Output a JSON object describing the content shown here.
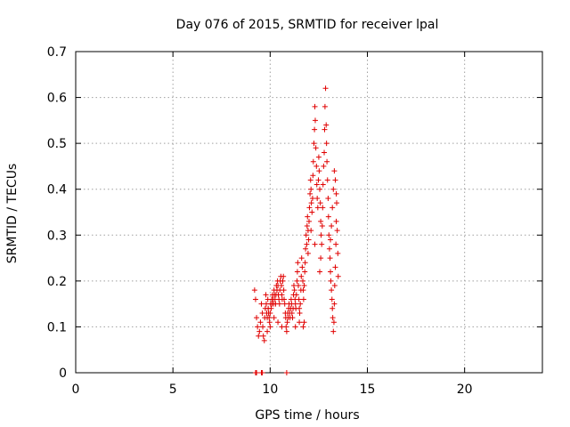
{
  "chart_data": {
    "type": "scatter",
    "title": "Day 076 of 2015, SRMTID for receiver lpal",
    "xlabel": "GPS time / hours",
    "ylabel": "SRMTID / TECUs",
    "xlim": [
      0,
      24
    ],
    "ylim": [
      0,
      0.7
    ],
    "xticks": [
      "0",
      "5",
      "10",
      "15",
      "20"
    ],
    "yticks": [
      "0",
      "0.1",
      "0.2",
      "0.3",
      "0.4",
      "0.5",
      "0.6",
      "0.7"
    ],
    "grid": true,
    "marker": "+",
    "marker_color": "#e00000",
    "series": [
      {
        "name": "SRMTID",
        "points": [
          [
            9.25,
            0.0
          ],
          [
            9.3,
            0.0
          ],
          [
            9.55,
            0.0
          ],
          [
            9.6,
            0.0
          ],
          [
            10.85,
            0.0
          ],
          [
            9.2,
            0.18
          ],
          [
            9.25,
            0.16
          ],
          [
            9.3,
            0.12
          ],
          [
            9.35,
            0.1
          ],
          [
            9.4,
            0.08
          ],
          [
            9.45,
            0.09
          ],
          [
            9.5,
            0.11
          ],
          [
            9.55,
            0.15
          ],
          [
            9.6,
            0.13
          ],
          [
            9.62,
            0.1
          ],
          [
            9.65,
            0.08
          ],
          [
            9.7,
            0.07
          ],
          [
            9.72,
            0.12
          ],
          [
            9.75,
            0.14
          ],
          [
            9.78,
            0.17
          ],
          [
            9.8,
            0.15
          ],
          [
            9.82,
            0.13
          ],
          [
            9.85,
            0.12
          ],
          [
            9.88,
            0.16
          ],
          [
            9.9,
            0.14
          ],
          [
            9.92,
            0.13
          ],
          [
            9.95,
            0.12
          ],
          [
            9.97,
            0.11
          ],
          [
            10.0,
            0.13
          ],
          [
            10.02,
            0.15
          ],
          [
            10.05,
            0.14
          ],
          [
            10.08,
            0.16
          ],
          [
            10.1,
            0.15
          ],
          [
            10.12,
            0.17
          ],
          [
            10.15,
            0.16
          ],
          [
            10.18,
            0.15
          ],
          [
            10.2,
            0.18
          ],
          [
            10.22,
            0.17
          ],
          [
            10.25,
            0.16
          ],
          [
            10.28,
            0.15
          ],
          [
            10.3,
            0.17
          ],
          [
            10.32,
            0.19
          ],
          [
            10.35,
            0.18
          ],
          [
            10.38,
            0.2
          ],
          [
            10.4,
            0.19
          ],
          [
            10.42,
            0.17
          ],
          [
            10.45,
            0.16
          ],
          [
            10.48,
            0.15
          ],
          [
            10.5,
            0.18
          ],
          [
            10.52,
            0.2
          ],
          [
            10.55,
            0.21
          ],
          [
            10.58,
            0.19
          ],
          [
            10.6,
            0.17
          ],
          [
            10.62,
            0.16
          ],
          [
            10.65,
            0.2
          ],
          [
            10.68,
            0.21
          ],
          [
            10.7,
            0.18
          ],
          [
            10.72,
            0.16
          ],
          [
            10.75,
            0.15
          ],
          [
            10.78,
            0.13
          ],
          [
            10.8,
            0.12
          ],
          [
            10.82,
            0.1
          ],
          [
            10.85,
            0.09
          ],
          [
            10.88,
            0.11
          ],
          [
            10.9,
            0.13
          ],
          [
            10.92,
            0.12
          ],
          [
            10.95,
            0.14
          ],
          [
            10.97,
            0.15
          ],
          [
            11.0,
            0.13
          ],
          [
            11.02,
            0.12
          ],
          [
            11.05,
            0.14
          ],
          [
            11.08,
            0.16
          ],
          [
            11.1,
            0.15
          ],
          [
            11.12,
            0.13
          ],
          [
            11.15,
            0.12
          ],
          [
            11.18,
            0.14
          ],
          [
            11.2,
            0.17
          ],
          [
            11.22,
            0.19
          ],
          [
            11.25,
            0.18
          ],
          [
            11.28,
            0.16
          ],
          [
            11.3,
            0.15
          ],
          [
            11.32,
            0.14
          ],
          [
            11.35,
            0.17
          ],
          [
            11.38,
            0.2
          ],
          [
            11.4,
            0.22
          ],
          [
            11.42,
            0.24
          ],
          [
            11.45,
            0.19
          ],
          [
            11.48,
            0.16
          ],
          [
            11.5,
            0.14
          ],
          [
            11.52,
            0.13
          ],
          [
            11.55,
            0.15
          ],
          [
            11.58,
            0.18
          ],
          [
            11.6,
            0.21
          ],
          [
            11.62,
            0.25
          ],
          [
            11.65,
            0.23
          ],
          [
            11.68,
            0.2
          ],
          [
            11.7,
            0.18
          ],
          [
            11.72,
            0.16
          ],
          [
            11.75,
            0.19
          ],
          [
            11.78,
            0.22
          ],
          [
            11.8,
            0.24
          ],
          [
            11.82,
            0.27
          ],
          [
            11.85,
            0.3
          ],
          [
            11.88,
            0.28
          ],
          [
            11.9,
            0.32
          ],
          [
            11.92,
            0.34
          ],
          [
            11.95,
            0.31
          ],
          [
            11.98,
            0.29
          ],
          [
            12.0,
            0.33
          ],
          [
            12.02,
            0.36
          ],
          [
            12.05,
            0.39
          ],
          [
            12.08,
            0.42
          ],
          [
            12.1,
            0.4
          ],
          [
            12.12,
            0.37
          ],
          [
            12.15,
            0.35
          ],
          [
            12.18,
            0.38
          ],
          [
            12.2,
            0.43
          ],
          [
            12.22,
            0.46
          ],
          [
            12.25,
            0.5
          ],
          [
            12.28,
            0.53
          ],
          [
            12.3,
            0.58
          ],
          [
            12.32,
            0.55
          ],
          [
            12.35,
            0.49
          ],
          [
            12.38,
            0.45
          ],
          [
            12.4,
            0.41
          ],
          [
            12.42,
            0.38
          ],
          [
            12.45,
            0.36
          ],
          [
            12.48,
            0.42
          ],
          [
            12.5,
            0.47
          ],
          [
            12.52,
            0.44
          ],
          [
            12.55,
            0.4
          ],
          [
            12.58,
            0.37
          ],
          [
            12.6,
            0.33
          ],
          [
            12.62,
            0.3
          ],
          [
            12.65,
            0.28
          ],
          [
            12.68,
            0.32
          ],
          [
            12.7,
            0.36
          ],
          [
            12.72,
            0.41
          ],
          [
            12.75,
            0.45
          ],
          [
            12.78,
            0.48
          ],
          [
            12.8,
            0.53
          ],
          [
            12.82,
            0.58
          ],
          [
            12.85,
            0.62
          ],
          [
            12.88,
            0.54
          ],
          [
            12.9,
            0.5
          ],
          [
            12.92,
            0.46
          ],
          [
            12.95,
            0.42
          ],
          [
            12.98,
            0.38
          ],
          [
            13.0,
            0.34
          ],
          [
            13.02,
            0.3
          ],
          [
            13.05,
            0.27
          ],
          [
            13.08,
            0.25
          ],
          [
            13.1,
            0.22
          ],
          [
            13.12,
            0.2
          ],
          [
            13.15,
            0.18
          ],
          [
            13.18,
            0.16
          ],
          [
            13.2,
            0.14
          ],
          [
            13.22,
            0.12
          ],
          [
            13.25,
            0.09
          ],
          [
            13.28,
            0.11
          ],
          [
            13.3,
            0.15
          ],
          [
            13.32,
            0.19
          ],
          [
            13.35,
            0.23
          ],
          [
            13.38,
            0.28
          ],
          [
            13.4,
            0.33
          ],
          [
            13.42,
            0.37
          ],
          [
            13.45,
            0.31
          ],
          [
            13.48,
            0.26
          ],
          [
            13.5,
            0.21
          ],
          [
            13.35,
            0.42
          ],
          [
            13.4,
            0.39
          ],
          [
            13.3,
            0.44
          ],
          [
            13.25,
            0.4
          ],
          [
            13.2,
            0.36
          ],
          [
            13.15,
            0.32
          ],
          [
            13.1,
            0.29
          ],
          [
            12.6,
            0.25
          ],
          [
            12.55,
            0.22
          ],
          [
            12.3,
            0.28
          ],
          [
            12.1,
            0.31
          ],
          [
            11.95,
            0.26
          ],
          [
            11.75,
            0.11
          ],
          [
            11.7,
            0.1
          ],
          [
            11.5,
            0.11
          ],
          [
            11.3,
            0.1
          ],
          [
            10.6,
            0.1
          ],
          [
            10.4,
            0.11
          ],
          [
            10.2,
            0.12
          ],
          [
            10.0,
            0.1
          ],
          [
            9.85,
            0.09
          ]
        ]
      }
    ]
  }
}
